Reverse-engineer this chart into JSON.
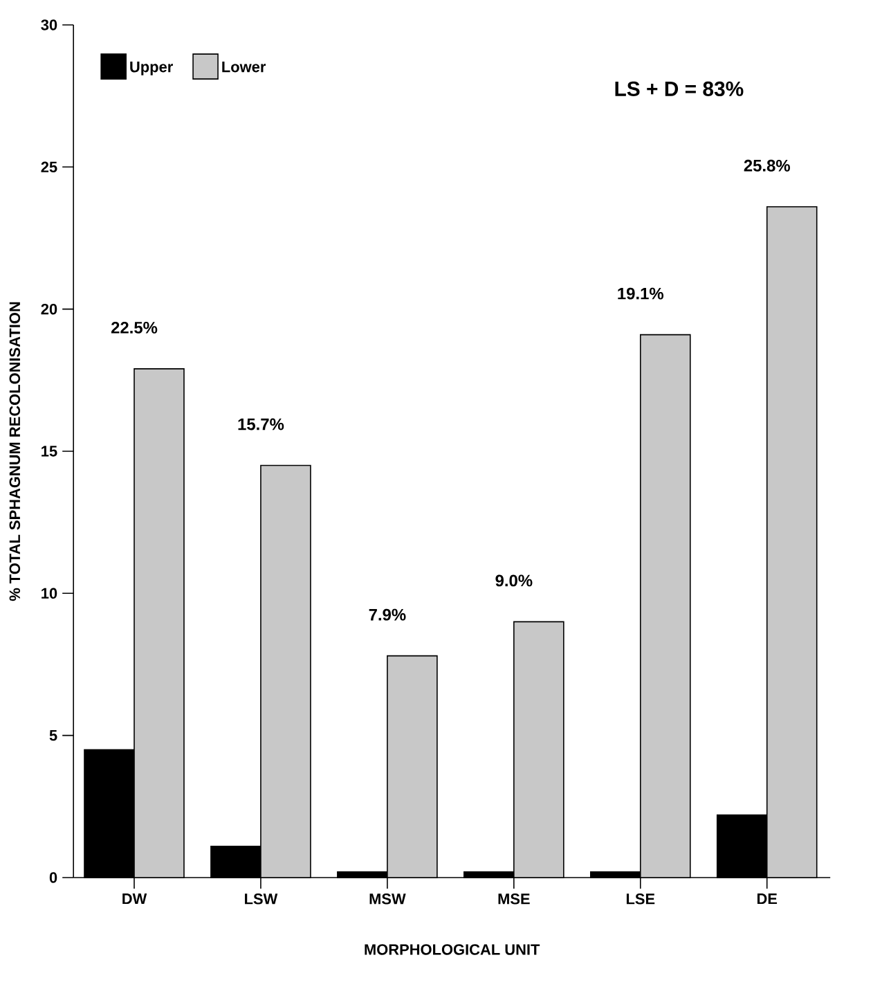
{
  "chart_data": {
    "type": "bar",
    "xlabel": "MORPHOLOGICAL UNIT",
    "ylabel": "% TOTAL SPHAGNUM RECOLONISATION",
    "categories": [
      "DW",
      "LSW",
      "MSW",
      "MSE",
      "LSE",
      "DE"
    ],
    "series": [
      {
        "name": "Upper",
        "color": "#000000",
        "values": [
          4.5,
          1.1,
          0.2,
          0.2,
          0.2,
          2.2
        ]
      },
      {
        "name": "Lower",
        "color": "#c8c8c8",
        "values": [
          17.9,
          14.5,
          7.8,
          9.0,
          19.1,
          23.6
        ]
      }
    ],
    "ylim": [
      0,
      30
    ],
    "yticks": [
      0,
      5,
      10,
      15,
      20,
      25,
      30
    ],
    "legend": "top left",
    "annotations": [
      "LS + D = 83%",
      "22.5%",
      "15.7%",
      "7.9%",
      "9.0%",
      "19.1%",
      "25.8%"
    ]
  }
}
